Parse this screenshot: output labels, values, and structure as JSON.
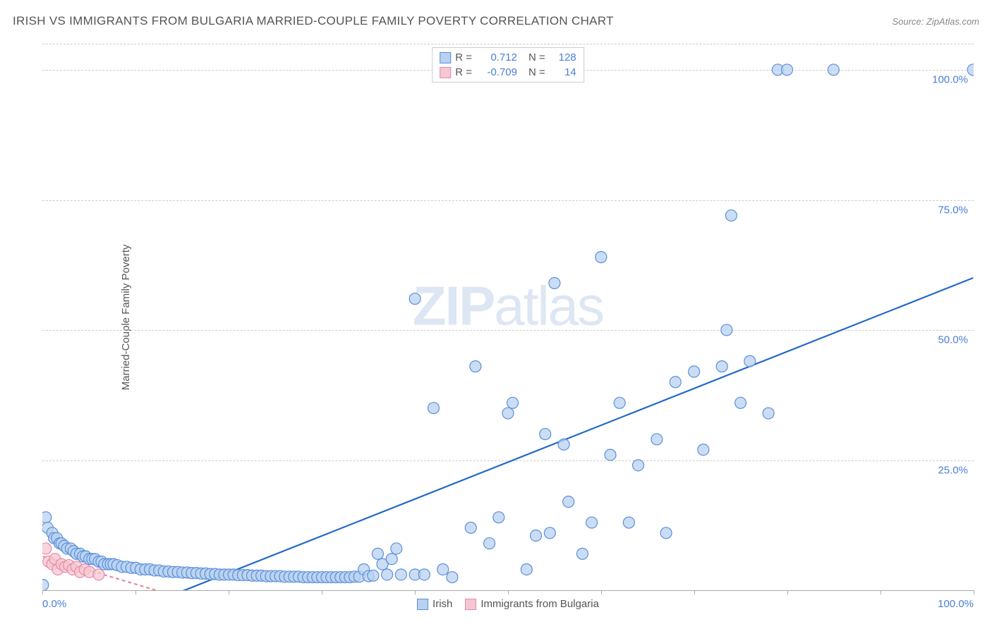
{
  "title": "IRISH VS IMMIGRANTS FROM BULGARIA MARRIED-COUPLE FAMILY POVERTY CORRELATION CHART",
  "source": "Source: ZipAtlas.com",
  "y_axis_label": "Married-Couple Family Poverty",
  "watermark_bold": "ZIP",
  "watermark_rest": "atlas",
  "chart": {
    "type": "scatter",
    "xlim": [
      0,
      100
    ],
    "ylim": [
      0,
      105
    ],
    "x_ticks": [
      0,
      10,
      20,
      30,
      40,
      50,
      60,
      70,
      80,
      90,
      100
    ],
    "y_ticks": [
      25,
      50,
      75,
      100
    ],
    "y_tick_labels": [
      "25.0%",
      "50.0%",
      "75.0%",
      "100.0%"
    ],
    "x_tick_labels_shown": {
      "0": "0.0%",
      "100": "100.0%"
    },
    "background_color": "#ffffff",
    "grid_color": "#cccccc",
    "axis_color": "#aaaaaa",
    "tick_label_color": "#4a7fd4",
    "marker_radius": 8,
    "marker_stroke_width": 1.2,
    "trend_line_width": 2.2,
    "series": {
      "irish": {
        "label": "Irish",
        "fill_color": "#b9d1f0",
        "stroke_color": "#5a8fd9",
        "line_color": "#2169c9",
        "r_value": "0.712",
        "n_value": "128",
        "line": {
          "x1": 11,
          "y1": -3,
          "x2": 100,
          "y2": 60
        },
        "points": [
          [
            0,
            1
          ],
          [
            0.3,
            14
          ],
          [
            0.5,
            12
          ],
          [
            1,
            11
          ],
          [
            1.2,
            10
          ],
          [
            1.5,
            10
          ],
          [
            1.8,
            9
          ],
          [
            2,
            9
          ],
          [
            2.3,
            8.5
          ],
          [
            2.6,
            8
          ],
          [
            3,
            8
          ],
          [
            3.3,
            7.5
          ],
          [
            3.6,
            7
          ],
          [
            4,
            7
          ],
          [
            4.3,
            6.5
          ],
          [
            4.6,
            6.5
          ],
          [
            5,
            6
          ],
          [
            5.3,
            6
          ],
          [
            5.6,
            6
          ],
          [
            6,
            5.5
          ],
          [
            6.3,
            5.5
          ],
          [
            6.6,
            5
          ],
          [
            7,
            5
          ],
          [
            7.3,
            5
          ],
          [
            7.6,
            5
          ],
          [
            8,
            4.8
          ],
          [
            8.5,
            4.5
          ],
          [
            9,
            4.5
          ],
          [
            9.5,
            4.3
          ],
          [
            10,
            4.3
          ],
          [
            10.5,
            4
          ],
          [
            11,
            4
          ],
          [
            11.5,
            4
          ],
          [
            12,
            3.8
          ],
          [
            12.5,
            3.8
          ],
          [
            13,
            3.6
          ],
          [
            13.5,
            3.6
          ],
          [
            14,
            3.5
          ],
          [
            14.5,
            3.5
          ],
          [
            15,
            3.4
          ],
          [
            15.5,
            3.4
          ],
          [
            16,
            3.3
          ],
          [
            16.5,
            3.3
          ],
          [
            17,
            3.2
          ],
          [
            17.5,
            3.2
          ],
          [
            18,
            3.1
          ],
          [
            18.5,
            3.1
          ],
          [
            19,
            3
          ],
          [
            19.5,
            3
          ],
          [
            20,
            3
          ],
          [
            20.5,
            3
          ],
          [
            21,
            2.9
          ],
          [
            21.5,
            2.9
          ],
          [
            22,
            2.9
          ],
          [
            22.5,
            2.8
          ],
          [
            23,
            2.8
          ],
          [
            23.5,
            2.8
          ],
          [
            24,
            2.7
          ],
          [
            24.5,
            2.7
          ],
          [
            25,
            2.7
          ],
          [
            25.5,
            2.7
          ],
          [
            26,
            2.6
          ],
          [
            26.5,
            2.6
          ],
          [
            27,
            2.6
          ],
          [
            27.5,
            2.6
          ],
          [
            28,
            2.5
          ],
          [
            28.5,
            2.5
          ],
          [
            29,
            2.5
          ],
          [
            29.5,
            2.5
          ],
          [
            30,
            2.5
          ],
          [
            30.5,
            2.5
          ],
          [
            31,
            2.5
          ],
          [
            31.5,
            2.5
          ],
          [
            32,
            2.5
          ],
          [
            32.5,
            2.5
          ],
          [
            33,
            2.5
          ],
          [
            33.5,
            2.6
          ],
          [
            34,
            2.6
          ],
          [
            34.5,
            4
          ],
          [
            35,
            2.7
          ],
          [
            35.5,
            2.8
          ],
          [
            36,
            7
          ],
          [
            36.5,
            5
          ],
          [
            37,
            3
          ],
          [
            37.5,
            6
          ],
          [
            38,
            8
          ],
          [
            38.5,
            3
          ],
          [
            40,
            3
          ],
          [
            40,
            56
          ],
          [
            41,
            3
          ],
          [
            42,
            35
          ],
          [
            43,
            4
          ],
          [
            44,
            2.5
          ],
          [
            46,
            12
          ],
          [
            46.5,
            43
          ],
          [
            48,
            9
          ],
          [
            49,
            14
          ],
          [
            50,
            34
          ],
          [
            50.5,
            36
          ],
          [
            52,
            4
          ],
          [
            53,
            10.5
          ],
          [
            54,
            30
          ],
          [
            54.5,
            11
          ],
          [
            55,
            59
          ],
          [
            56,
            28
          ],
          [
            56.5,
            17
          ],
          [
            58,
            7
          ],
          [
            59,
            13
          ],
          [
            60,
            64
          ],
          [
            61,
            26
          ],
          [
            62,
            36
          ],
          [
            63,
            13
          ],
          [
            64,
            24
          ],
          [
            66,
            29
          ],
          [
            67,
            11
          ],
          [
            68,
            40
          ],
          [
            70,
            42
          ],
          [
            71,
            27
          ],
          [
            73,
            43
          ],
          [
            73.5,
            50
          ],
          [
            74,
            72
          ],
          [
            75,
            36
          ],
          [
            76,
            44
          ],
          [
            78,
            34
          ],
          [
            79,
            100
          ],
          [
            80,
            100
          ],
          [
            85,
            100
          ],
          [
            100,
            100
          ]
        ]
      },
      "bulgaria": {
        "label": "Immigrants from Bulgaria",
        "fill_color": "#f5c7d2",
        "stroke_color": "#e68aa3",
        "line_color": "#e68aa3",
        "line_dash": "5,4",
        "r_value": "-0.709",
        "n_value": "14",
        "line": {
          "x1": 0,
          "y1": 6.5,
          "x2": 14,
          "y2": -1
        },
        "points": [
          [
            0.3,
            8
          ],
          [
            0.6,
            5.5
          ],
          [
            1,
            5
          ],
          [
            1.3,
            6
          ],
          [
            1.6,
            4
          ],
          [
            2,
            5
          ],
          [
            2.4,
            4.5
          ],
          [
            2.8,
            4.8
          ],
          [
            3.2,
            4
          ],
          [
            3.6,
            4.5
          ],
          [
            4,
            3.5
          ],
          [
            4.5,
            4
          ],
          [
            5,
            3.5
          ],
          [
            6,
            3
          ]
        ]
      }
    }
  },
  "legend_top": {
    "r_label": "R =",
    "n_label": "N ="
  }
}
